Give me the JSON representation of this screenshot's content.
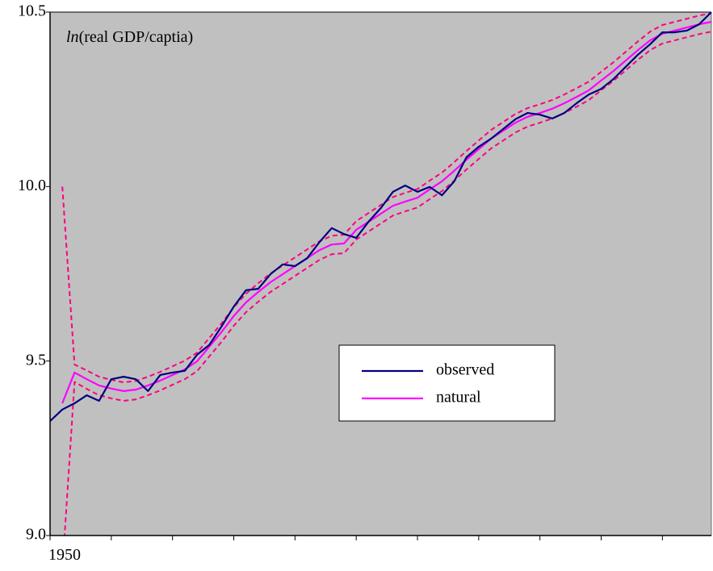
{
  "chart_data": {
    "type": "line",
    "annotation": {
      "italic": "ln",
      "text": "(real GDP/captia)"
    },
    "x": [
      1950,
      1951,
      1952,
      1953,
      1954,
      1955,
      1956,
      1957,
      1958,
      1959,
      1960,
      1961,
      1962,
      1963,
      1964,
      1965,
      1966,
      1967,
      1968,
      1969,
      1970,
      1971,
      1972,
      1973,
      1974,
      1975,
      1976,
      1977,
      1978,
      1979,
      1980,
      1981,
      1982,
      1983,
      1984,
      1985,
      1986,
      1987,
      1988,
      1989,
      1990,
      1991,
      1992,
      1993,
      1994,
      1995,
      1996,
      1997,
      1998,
      1999,
      2000,
      2001,
      2002,
      2003,
      2004
    ],
    "series": [
      {
        "name": "observed",
        "color": "#000080",
        "dashed": false,
        "values": [
          9.328,
          9.361,
          9.379,
          9.402,
          9.386,
          9.448,
          9.455,
          9.448,
          9.414,
          9.46,
          9.467,
          9.472,
          9.518,
          9.546,
          9.599,
          9.656,
          9.703,
          9.707,
          9.749,
          9.777,
          9.772,
          9.795,
          9.841,
          9.881,
          9.864,
          9.853,
          9.899,
          9.938,
          9.985,
          10.003,
          9.985,
          9.999,
          9.975,
          10.015,
          10.084,
          10.114,
          10.137,
          10.165,
          10.193,
          10.211,
          10.206,
          10.195,
          10.211,
          10.239,
          10.264,
          10.28,
          10.308,
          10.343,
          10.378,
          10.408,
          10.442,
          10.442,
          10.447,
          10.465,
          10.5
        ]
      },
      {
        "name": "natural",
        "color": "#ff00ff",
        "dashed": false,
        "values": [
          null,
          9.379,
          9.467,
          9.448,
          9.43,
          9.421,
          9.414,
          9.418,
          9.43,
          9.444,
          9.46,
          9.476,
          9.499,
          9.541,
          9.583,
          9.629,
          9.668,
          9.698,
          9.726,
          9.749,
          9.772,
          9.795,
          9.818,
          9.834,
          9.837,
          9.876,
          9.899,
          9.922,
          9.945,
          9.957,
          9.968,
          9.992,
          10.015,
          10.045,
          10.077,
          10.107,
          10.137,
          10.16,
          10.183,
          10.2,
          10.211,
          10.223,
          10.239,
          10.257,
          10.276,
          10.304,
          10.331,
          10.361,
          10.391,
          10.419,
          10.438,
          10.447,
          10.456,
          10.465,
          10.472
        ]
      },
      {
        "color": "#ff0080",
        "dashed": true,
        "values": [
          null,
          10.0,
          9.49,
          9.473,
          9.455,
          9.446,
          9.439,
          9.443,
          9.455,
          9.469,
          9.485,
          9.501,
          9.524,
          9.566,
          9.608,
          9.654,
          9.693,
          9.723,
          9.751,
          9.774,
          9.797,
          9.82,
          9.843,
          9.859,
          9.862,
          9.901,
          9.924,
          9.947,
          9.97,
          9.982,
          9.993,
          10.017,
          10.04,
          10.07,
          10.102,
          10.132,
          10.162,
          10.185,
          10.208,
          10.225,
          10.236,
          10.248,
          10.264,
          10.282,
          10.301,
          10.329,
          10.356,
          10.386,
          10.416,
          10.444,
          10.463,
          10.472,
          10.481,
          10.49,
          10.497
        ]
      },
      {
        "color": "#ff0080",
        "dashed": true,
        "values": [
          null,
          8.9,
          9.44,
          9.42,
          9.402,
          9.393,
          9.386,
          9.39,
          9.402,
          9.416,
          9.432,
          9.448,
          9.471,
          9.513,
          9.555,
          9.601,
          9.64,
          9.67,
          9.698,
          9.721,
          9.744,
          9.767,
          9.79,
          9.806,
          9.809,
          9.848,
          9.871,
          9.894,
          9.917,
          9.929,
          9.94,
          9.964,
          9.987,
          10.017,
          10.049,
          10.079,
          10.109,
          10.132,
          10.155,
          10.172,
          10.183,
          10.195,
          10.211,
          10.229,
          10.248,
          10.276,
          10.303,
          10.333,
          10.363,
          10.391,
          10.41,
          10.419,
          10.428,
          10.437,
          10.444
        ]
      }
    ],
    "xlim": [
      1950,
      2004
    ],
    "xticks": [
      1950
    ],
    "xticks_unlabeled": [
      1955,
      1960,
      1965,
      1970,
      1975,
      1980,
      1985,
      1990,
      1995,
      2000
    ],
    "ylim": [
      9.0,
      10.5
    ],
    "yticks": [
      {
        "value": 9.0,
        "label": "9.0"
      },
      9.5,
      {
        "value": 10.0,
        "label": "10.0"
      },
      10.5
    ],
    "plot_background": "#c0c0c0",
    "legend": "center-right"
  }
}
